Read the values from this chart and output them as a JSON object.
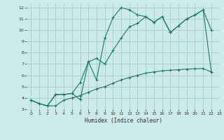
{
  "xlabel": "Humidex (Indice chaleur)",
  "bg_color": "#cceaea",
  "grid_color": "#aacccc",
  "line_color": "#1a7a6a",
  "xlim": [
    -0.5,
    23
  ],
  "ylim": [
    3,
    12.3
  ],
  "xticks": [
    0,
    1,
    2,
    3,
    4,
    5,
    6,
    7,
    8,
    9,
    10,
    11,
    12,
    13,
    14,
    15,
    16,
    17,
    18,
    19,
    20,
    21,
    22,
    23
  ],
  "yticks": [
    3,
    4,
    5,
    6,
    7,
    8,
    9,
    10,
    11,
    12
  ],
  "line1_x": [
    0,
    1,
    2,
    3,
    4,
    5,
    6,
    7,
    8,
    9,
    10,
    11,
    12,
    13,
    14,
    15,
    16,
    17,
    18,
    19,
    20,
    21,
    22
  ],
  "line1_y": [
    3.8,
    3.5,
    3.3,
    4.3,
    4.3,
    4.4,
    3.85,
    7.2,
    5.6,
    9.3,
    11.1,
    12.0,
    11.8,
    11.35,
    11.2,
    10.7,
    11.2,
    9.8,
    10.4,
    11.0,
    11.35,
    11.8,
    10.0
  ],
  "line2_x": [
    0,
    1,
    2,
    3,
    4,
    5,
    6,
    7,
    8,
    9,
    10,
    11,
    12,
    13,
    14,
    15,
    16,
    17,
    18,
    19,
    20,
    21,
    22
  ],
  "line2_y": [
    3.8,
    3.5,
    3.3,
    4.3,
    4.3,
    4.4,
    5.35,
    7.2,
    7.5,
    7.0,
    8.2,
    9.3,
    10.3,
    10.6,
    11.2,
    10.7,
    11.2,
    9.8,
    10.4,
    11.0,
    11.35,
    11.8,
    6.3
  ],
  "line3_x": [
    0,
    1,
    2,
    3,
    4,
    5,
    6,
    7,
    8,
    9,
    10,
    11,
    12,
    13,
    14,
    15,
    16,
    17,
    18,
    19,
    20,
    21,
    22
  ],
  "line3_y": [
    3.8,
    3.5,
    3.3,
    3.3,
    3.8,
    4.0,
    4.2,
    4.5,
    4.8,
    5.0,
    5.3,
    5.6,
    5.8,
    6.0,
    6.2,
    6.3,
    6.4,
    6.45,
    6.5,
    6.55,
    6.58,
    6.6,
    6.3
  ]
}
